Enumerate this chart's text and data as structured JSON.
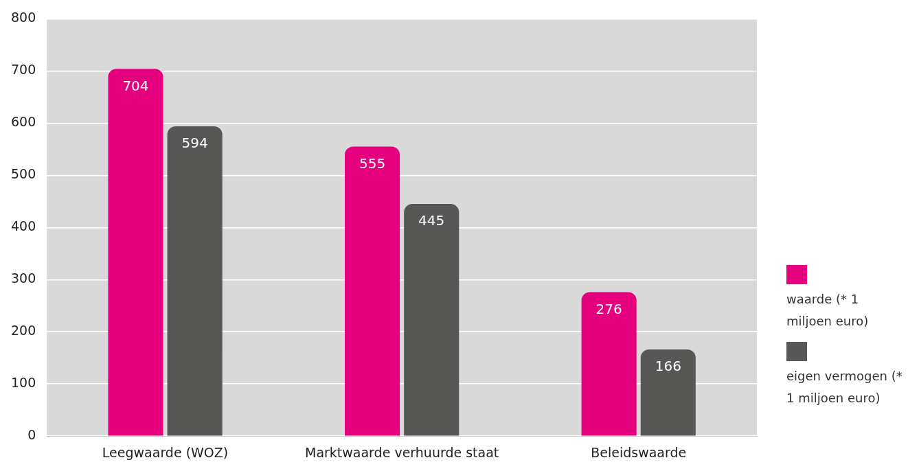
{
  "chart_data": {
    "type": "bar",
    "categories": [
      "Leegwaarde (WOZ)",
      "Marktwaarde verhuurde staat",
      "Beleidswaarde"
    ],
    "series": [
      {
        "name": "waarde (* 1 miljoen euro)",
        "color": "#e5007e",
        "values": [
          704,
          555,
          276
        ]
      },
      {
        "name": "eigen vermogen (* 1 miljoen euro)",
        "color": "#575756",
        "values": [
          594,
          445,
          166
        ]
      }
    ],
    "ylim": [
      0,
      800
    ],
    "yticks": [
      0,
      100,
      200,
      300,
      400,
      500,
      600,
      700,
      800
    ],
    "grid": "y",
    "legend": "right",
    "data_labels": true
  }
}
